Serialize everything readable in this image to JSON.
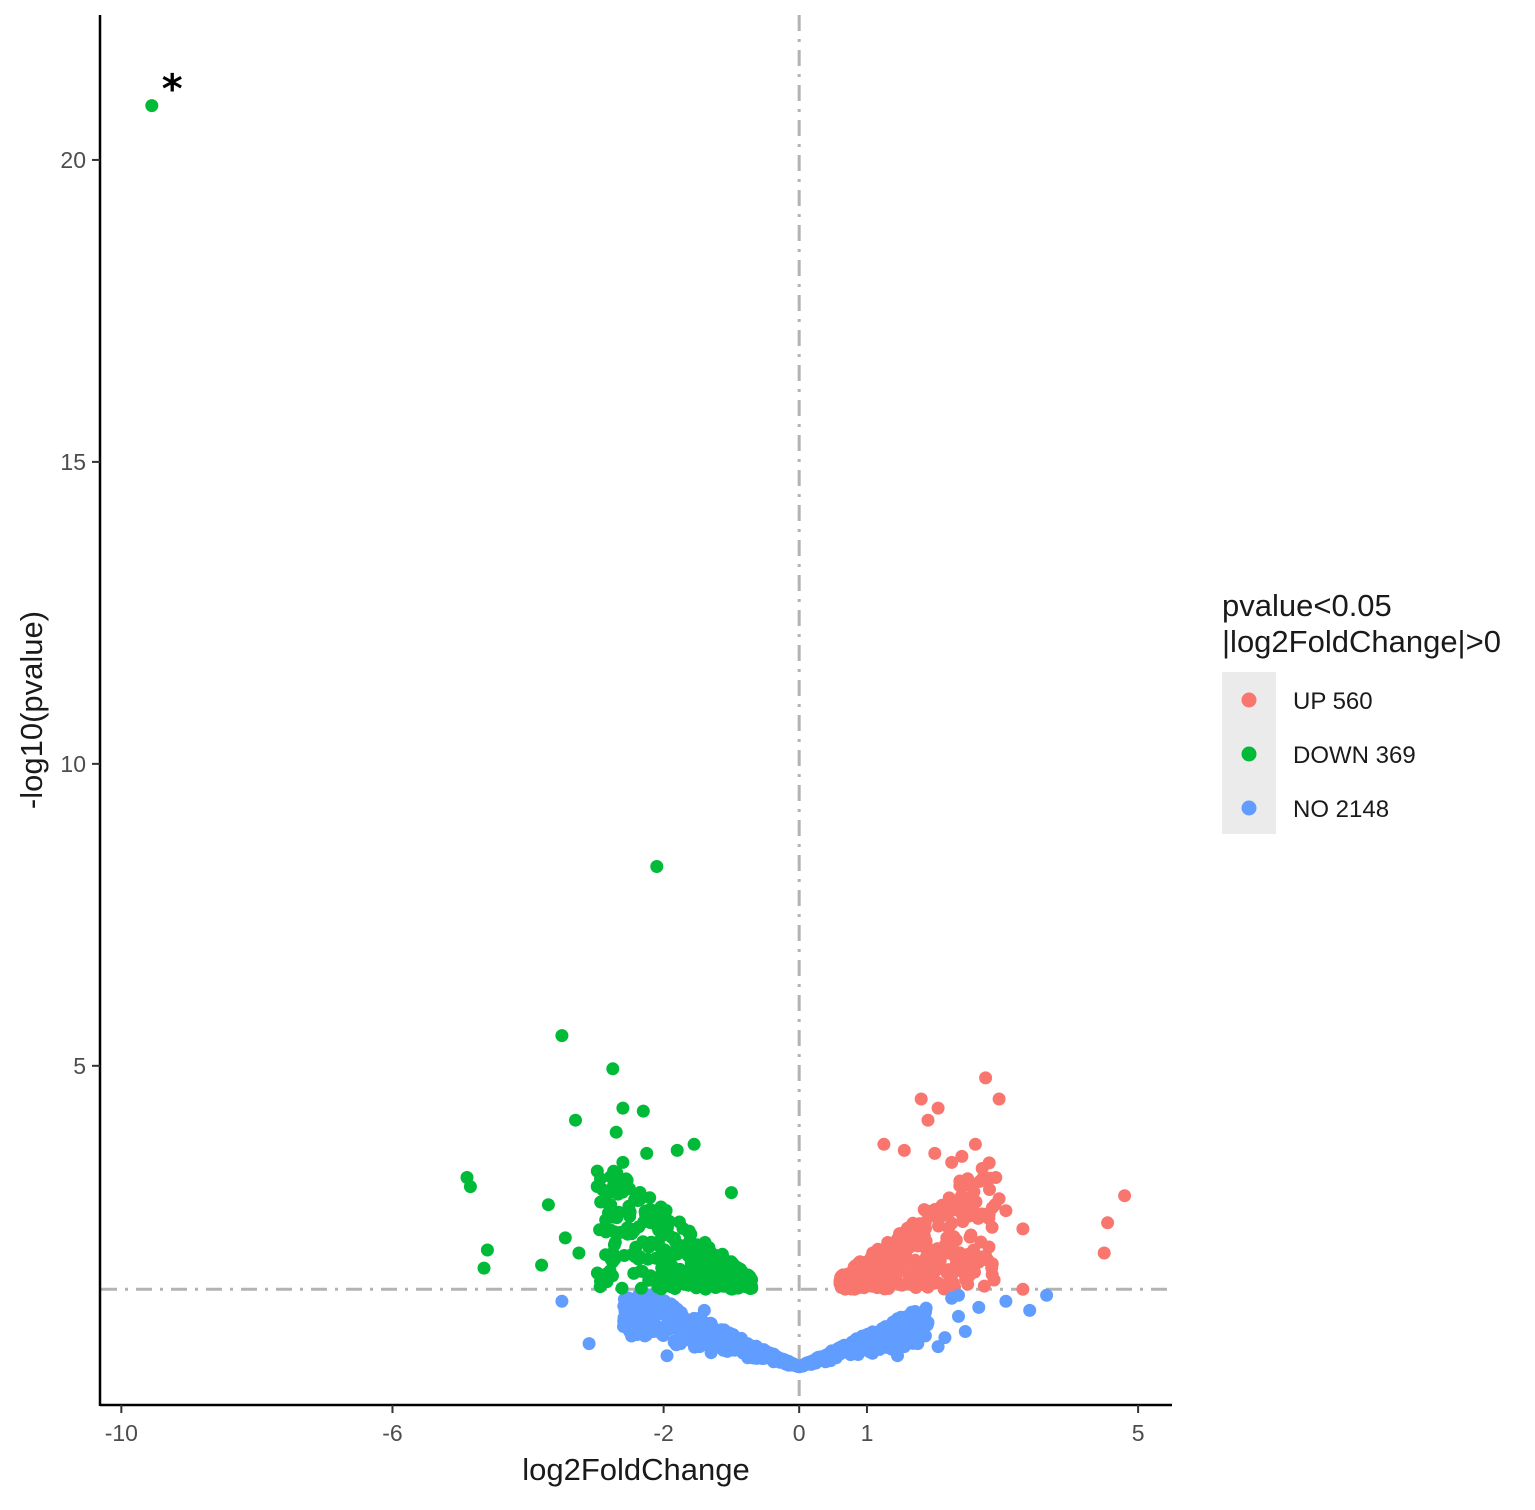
{
  "chart_data": {
    "type": "scatter",
    "title": "",
    "xlabel": "log2FoldChange",
    "ylabel": "-log10(pvalue)",
    "xlim": [
      -10.3,
      5.5
    ],
    "ylim": [
      -0.6,
      22.4
    ],
    "x_ticks": [
      -10,
      -6,
      -2,
      0,
      1,
      5
    ],
    "y_ticks": [
      5,
      10,
      15,
      20
    ],
    "threshold_lines": {
      "x": 0,
      "y": 1.3
    },
    "annotation": {
      "text": "*",
      "x": -9.25,
      "y": 21.35
    },
    "legend": {
      "position": "right",
      "title_line1": "pvalue<0.05",
      "title_line2": "|log2FoldChange|>0",
      "entries": [
        {
          "label": "UP 560",
          "color": "#F8766D",
          "key": "up"
        },
        {
          "label": "DOWN 369",
          "color": "#00BA38",
          "key": "down"
        },
        {
          "label": "NO 2148",
          "color": "#619CFF",
          "key": "no"
        }
      ]
    },
    "series": [
      {
        "name": "UP",
        "count": 560,
        "color": "#F8766D",
        "points": [
          [
            2.75,
            4.8
          ],
          [
            2.95,
            4.45
          ],
          [
            1.8,
            4.45
          ],
          [
            2.05,
            4.3
          ],
          [
            1.9,
            4.1
          ],
          [
            1.25,
            3.7
          ],
          [
            2.6,
            3.7
          ],
          [
            1.55,
            3.6
          ],
          [
            2.0,
            3.55
          ],
          [
            2.4,
            3.5
          ],
          [
            2.25,
            3.4
          ],
          [
            2.9,
            3.15
          ],
          [
            2.7,
            3.3
          ],
          [
            2.55,
            3.0
          ],
          [
            3.3,
            2.3
          ],
          [
            4.8,
            2.85
          ],
          [
            4.55,
            2.4
          ],
          [
            4.5,
            1.9
          ],
          [
            2.8,
            2.0
          ],
          [
            2.75,
            1.85
          ],
          [
            3.3,
            1.3
          ],
          [
            3.05,
            2.6
          ],
          [
            2.95,
            2.8
          ],
          [
            2.65,
            1.75
          ]
        ]
      },
      {
        "name": "DOWN",
        "count": 369,
        "color": "#00BA38",
        "points": [
          [
            -9.55,
            20.9
          ],
          [
            -2.1,
            8.3
          ],
          [
            -3.5,
            5.5
          ],
          [
            -2.75,
            4.95
          ],
          [
            -2.6,
            4.3
          ],
          [
            -2.3,
            4.25
          ],
          [
            -3.3,
            4.1
          ],
          [
            -2.7,
            3.9
          ],
          [
            -1.55,
            3.7
          ],
          [
            -1.8,
            3.6
          ],
          [
            -2.25,
            3.55
          ],
          [
            -2.6,
            3.4
          ],
          [
            -4.9,
            3.15
          ],
          [
            -4.85,
            3.0
          ],
          [
            -2.9,
            2.95
          ],
          [
            -1.0,
            2.9
          ],
          [
            -3.7,
            2.7
          ],
          [
            -4.6,
            1.95
          ],
          [
            -4.65,
            1.65
          ],
          [
            -3.45,
            2.15
          ],
          [
            -3.25,
            1.9
          ],
          [
            -3.8,
            1.7
          ],
          [
            -2.85,
            2.25
          ],
          [
            -2.75,
            1.9
          ]
        ]
      },
      {
        "name": "NO",
        "count": 2148,
        "color": "#619CFF",
        "points": [
          [
            -3.5,
            1.1
          ],
          [
            -3.1,
            0.4
          ],
          [
            -2.3,
            0.65
          ],
          [
            -2.15,
            0.6
          ],
          [
            -1.75,
            0.4
          ],
          [
            -1.3,
            0.25
          ],
          [
            -1.6,
            0.45
          ],
          [
            -1.95,
            0.2
          ],
          [
            -1.4,
            0.95
          ],
          [
            1.55,
            0.35
          ],
          [
            1.75,
            0.4
          ],
          [
            2.15,
            0.5
          ],
          [
            2.45,
            0.6
          ],
          [
            2.35,
            0.85
          ],
          [
            2.65,
            1.0
          ],
          [
            3.05,
            1.1
          ],
          [
            3.4,
            0.95
          ],
          [
            3.65,
            1.2
          ],
          [
            2.25,
            1.15
          ],
          [
            1.45,
            0.2
          ],
          [
            2.05,
            0.35
          ],
          [
            1.35,
            0.5
          ],
          [
            1.9,
            0.75
          ],
          [
            2.35,
            1.2
          ]
        ]
      }
    ]
  }
}
